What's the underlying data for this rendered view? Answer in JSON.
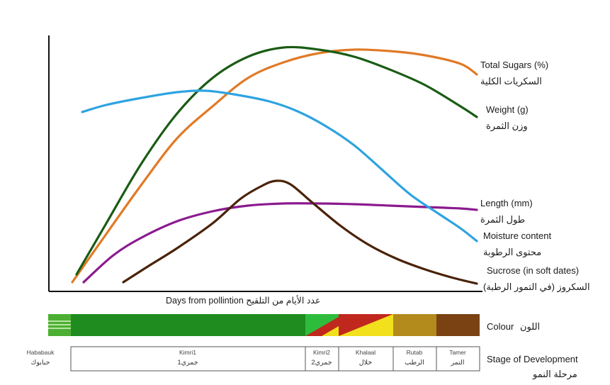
{
  "curves": [
    {
      "key": "total_sugars",
      "label_en": "Total Sugars (%)",
      "label_ar": "السكريات الكلية",
      "color": "#e07a27",
      "points": [
        [
          102,
          398
        ],
        [
          150,
          330
        ],
        [
          200,
          260
        ],
        [
          250,
          195
        ],
        [
          300,
          150
        ],
        [
          350,
          110
        ],
        [
          400,
          88
        ],
        [
          450,
          75
        ],
        [
          500,
          70
        ],
        [
          550,
          72
        ],
        [
          600,
          78
        ],
        [
          650,
          90
        ],
        [
          673,
          105
        ]
      ]
    },
    {
      "key": "weight",
      "label_en": "Weight (g)",
      "label_ar": "وزن الثمرة",
      "color": "#1a5c14",
      "points": [
        [
          108,
          387
        ],
        [
          150,
          315
        ],
        [
          200,
          230
        ],
        [
          250,
          160
        ],
        [
          300,
          110
        ],
        [
          350,
          80
        ],
        [
          400,
          67
        ],
        [
          450,
          70
        ],
        [
          500,
          80
        ],
        [
          550,
          98
        ],
        [
          600,
          120
        ],
        [
          650,
          150
        ],
        [
          673,
          165
        ]
      ]
    },
    {
      "key": "length",
      "label_en": "Length  (mm)",
      "label_ar": "طول الثمرة",
      "color": "#8b1a8f",
      "points": [
        [
          118,
          398
        ],
        [
          160,
          360
        ],
        [
          200,
          335
        ],
        [
          250,
          312
        ],
        [
          300,
          298
        ],
        [
          350,
          290
        ],
        [
          400,
          287
        ],
        [
          450,
          287
        ],
        [
          500,
          288
        ],
        [
          550,
          290
        ],
        [
          600,
          292
        ],
        [
          650,
          294
        ],
        [
          673,
          296
        ]
      ]
    },
    {
      "key": "moisture",
      "label_en": "Moisture content",
      "label_ar": "محتوى الرطوبة",
      "color": "#2ea3e0",
      "points": [
        [
          116,
          158
        ],
        [
          150,
          148
        ],
        [
          200,
          138
        ],
        [
          250,
          130
        ],
        [
          290,
          128
        ],
        [
          330,
          133
        ],
        [
          380,
          143
        ],
        [
          420,
          157
        ],
        [
          460,
          178
        ],
        [
          500,
          205
        ],
        [
          540,
          240
        ],
        [
          580,
          275
        ],
        [
          620,
          302
        ],
        [
          650,
          322
        ],
        [
          673,
          340
        ]
      ]
    },
    {
      "key": "sucrose",
      "label_en": "Sucrose (in soft dates)",
      "label_ar": "السكروز (في التمور الرطبة)",
      "color": "#4a2208",
      "points": [
        [
          174,
          398
        ],
        [
          210,
          375
        ],
        [
          250,
          350
        ],
        [
          300,
          315
        ],
        [
          340,
          280
        ],
        [
          370,
          262
        ],
        [
          390,
          255
        ],
        [
          410,
          260
        ],
        [
          440,
          285
        ],
        [
          480,
          318
        ],
        [
          520,
          345
        ],
        [
          560,
          365
        ],
        [
          600,
          380
        ],
        [
          640,
          392
        ],
        [
          673,
          400
        ]
      ]
    }
  ],
  "axes": {
    "xlabel": "Days from pollintion عدد الأيام من التلقيح"
  },
  "colour_bar": {
    "label": "Colour",
    "label_ar": "اللون",
    "segments": [
      {
        "name": "hababauk",
        "color": "#4caf32"
      },
      {
        "name": "kimri1",
        "color": "#1e8c1e"
      },
      {
        "name": "kimri2",
        "colors": [
          "#1e8c1e",
          "#2ebc3c",
          "#c0281e"
        ]
      },
      {
        "name": "khalaal",
        "colors": [
          "#c0281e",
          "#f2e01c"
        ]
      },
      {
        "name": "rutab",
        "color": "#b38a1c"
      },
      {
        "name": "tamer",
        "color": "#7a4212"
      }
    ]
  },
  "stages": {
    "label": "Stage of Development",
    "label_ar": "مرحلة النمو",
    "items": [
      {
        "en": "Hababauk",
        "ar": "حبابوك"
      },
      {
        "en": "Kimri1",
        "ar": "جمري1"
      },
      {
        "en": "Kimri2",
        "ar": "جمري2"
      },
      {
        "en": "Khalaal",
        "ar": "خلال"
      },
      {
        "en": "Rutab",
        "ar": "الرطب"
      },
      {
        "en": "Tamer",
        "ar": "التمر"
      }
    ]
  }
}
